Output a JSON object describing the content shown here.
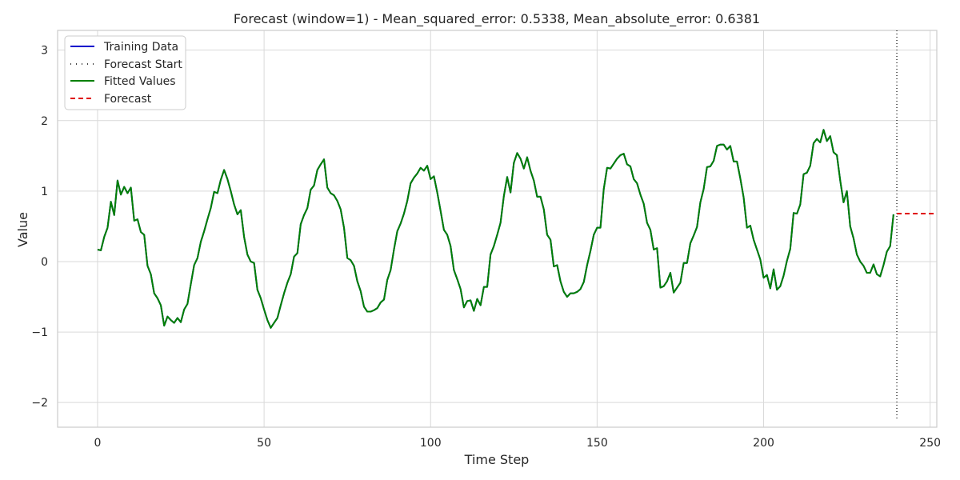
{
  "chart_data": {
    "type": "line",
    "title": "Forecast (window=1) - Mean_squared_error: 0.5338, Mean_absolute_error: 0.6381",
    "xlabel": "Time Step",
    "ylabel": "Value",
    "xlim": [
      -12,
      252
    ],
    "ylim": [
      -2.35,
      3.28
    ],
    "xticks": [
      0,
      50,
      100,
      150,
      200,
      250
    ],
    "yticks": [
      -2,
      -1,
      0,
      1,
      2,
      3
    ],
    "grid": true,
    "legend_position": "top-left",
    "legend": [
      {
        "label": "Training Data",
        "color": "#0000cc",
        "style": "solid"
      },
      {
        "label": "Forecast Start",
        "color": "#000000",
        "style": "dotted"
      },
      {
        "label": "Fitted Values",
        "color": "#008000",
        "style": "solid"
      },
      {
        "label": "Forecast",
        "color": "#e00000",
        "style": "dashed"
      }
    ],
    "forecast_start_x": 240,
    "forecast": {
      "x": [
        240,
        252
      ],
      "y": [
        0.68,
        0.68
      ]
    },
    "series_y": [
      0.17,
      0.16,
      0.35,
      0.48,
      0.85,
      0.66,
      1.15,
      0.95,
      1.06,
      0.97,
      1.05,
      0.58,
      0.6,
      0.42,
      0.38,
      -0.06,
      -0.18,
      -0.45,
      -0.52,
      -0.62,
      -0.91,
      -0.78,
      -0.83,
      -0.87,
      -0.8,
      -0.86,
      -0.68,
      -0.6,
      -0.32,
      -0.05,
      0.05,
      0.28,
      0.43,
      0.6,
      0.76,
      0.99,
      0.97,
      1.16,
      1.3,
      1.17,
      1.0,
      0.81,
      0.67,
      0.73,
      0.35,
      0.1,
      0.0,
      -0.02,
      -0.4,
      -0.52,
      -0.68,
      -0.83,
      -0.94,
      -0.87,
      -0.8,
      -0.62,
      -0.45,
      -0.3,
      -0.18,
      0.07,
      0.12,
      0.53,
      0.66,
      0.76,
      1.02,
      1.08,
      1.3,
      1.38,
      1.45,
      1.05,
      0.97,
      0.94,
      0.86,
      0.74,
      0.48,
      0.05,
      0.02,
      -0.06,
      -0.28,
      -0.42,
      -0.64,
      -0.71,
      -0.71,
      -0.69,
      -0.66,
      -0.58,
      -0.54,
      -0.26,
      -0.12,
      0.17,
      0.43,
      0.54,
      0.68,
      0.86,
      1.11,
      1.19,
      1.25,
      1.33,
      1.29,
      1.36,
      1.17,
      1.21,
      0.98,
      0.72,
      0.45,
      0.38,
      0.22,
      -0.12,
      -0.25,
      -0.39,
      -0.65,
      -0.56,
      -0.55,
      -0.7,
      -0.53,
      -0.62,
      -0.36,
      -0.36,
      0.1,
      0.22,
      0.38,
      0.55,
      0.93,
      1.2,
      0.98,
      1.4,
      1.54,
      1.46,
      1.32,
      1.48,
      1.29,
      1.15,
      0.92,
      0.92,
      0.74,
      0.38,
      0.31,
      -0.07,
      -0.05,
      -0.28,
      -0.43,
      -0.5,
      -0.45,
      -0.45,
      -0.43,
      -0.39,
      -0.29,
      -0.05,
      0.15,
      0.38,
      0.48,
      0.48,
      1.03,
      1.33,
      1.32,
      1.39,
      1.46,
      1.51,
      1.53,
      1.38,
      1.35,
      1.17,
      1.11,
      0.95,
      0.82,
      0.55,
      0.45,
      0.17,
      0.19,
      -0.37,
      -0.35,
      -0.28,
      -0.16,
      -0.44,
      -0.37,
      -0.3,
      -0.02,
      -0.02,
      0.26,
      0.37,
      0.49,
      0.84,
      1.03,
      1.34,
      1.35,
      1.43,
      1.64,
      1.66,
      1.66,
      1.59,
      1.64,
      1.42,
      1.42,
      1.18,
      0.91,
      0.48,
      0.51,
      0.31,
      0.17,
      0.03,
      -0.23,
      -0.19,
      -0.38,
      -0.11,
      -0.4,
      -0.35,
      -0.2,
      0.01,
      0.18,
      0.69,
      0.68,
      0.81,
      1.24,
      1.26,
      1.36,
      1.68,
      1.74,
      1.69,
      1.87,
      1.71,
      1.78,
      1.55,
      1.51,
      1.15,
      0.84,
      1.0,
      0.5,
      0.33,
      0.1,
      0.0,
      -0.06,
      -0.16,
      -0.16,
      -0.04,
      -0.18,
      -0.21,
      -0.05,
      0.14,
      0.22,
      0.67
    ]
  }
}
